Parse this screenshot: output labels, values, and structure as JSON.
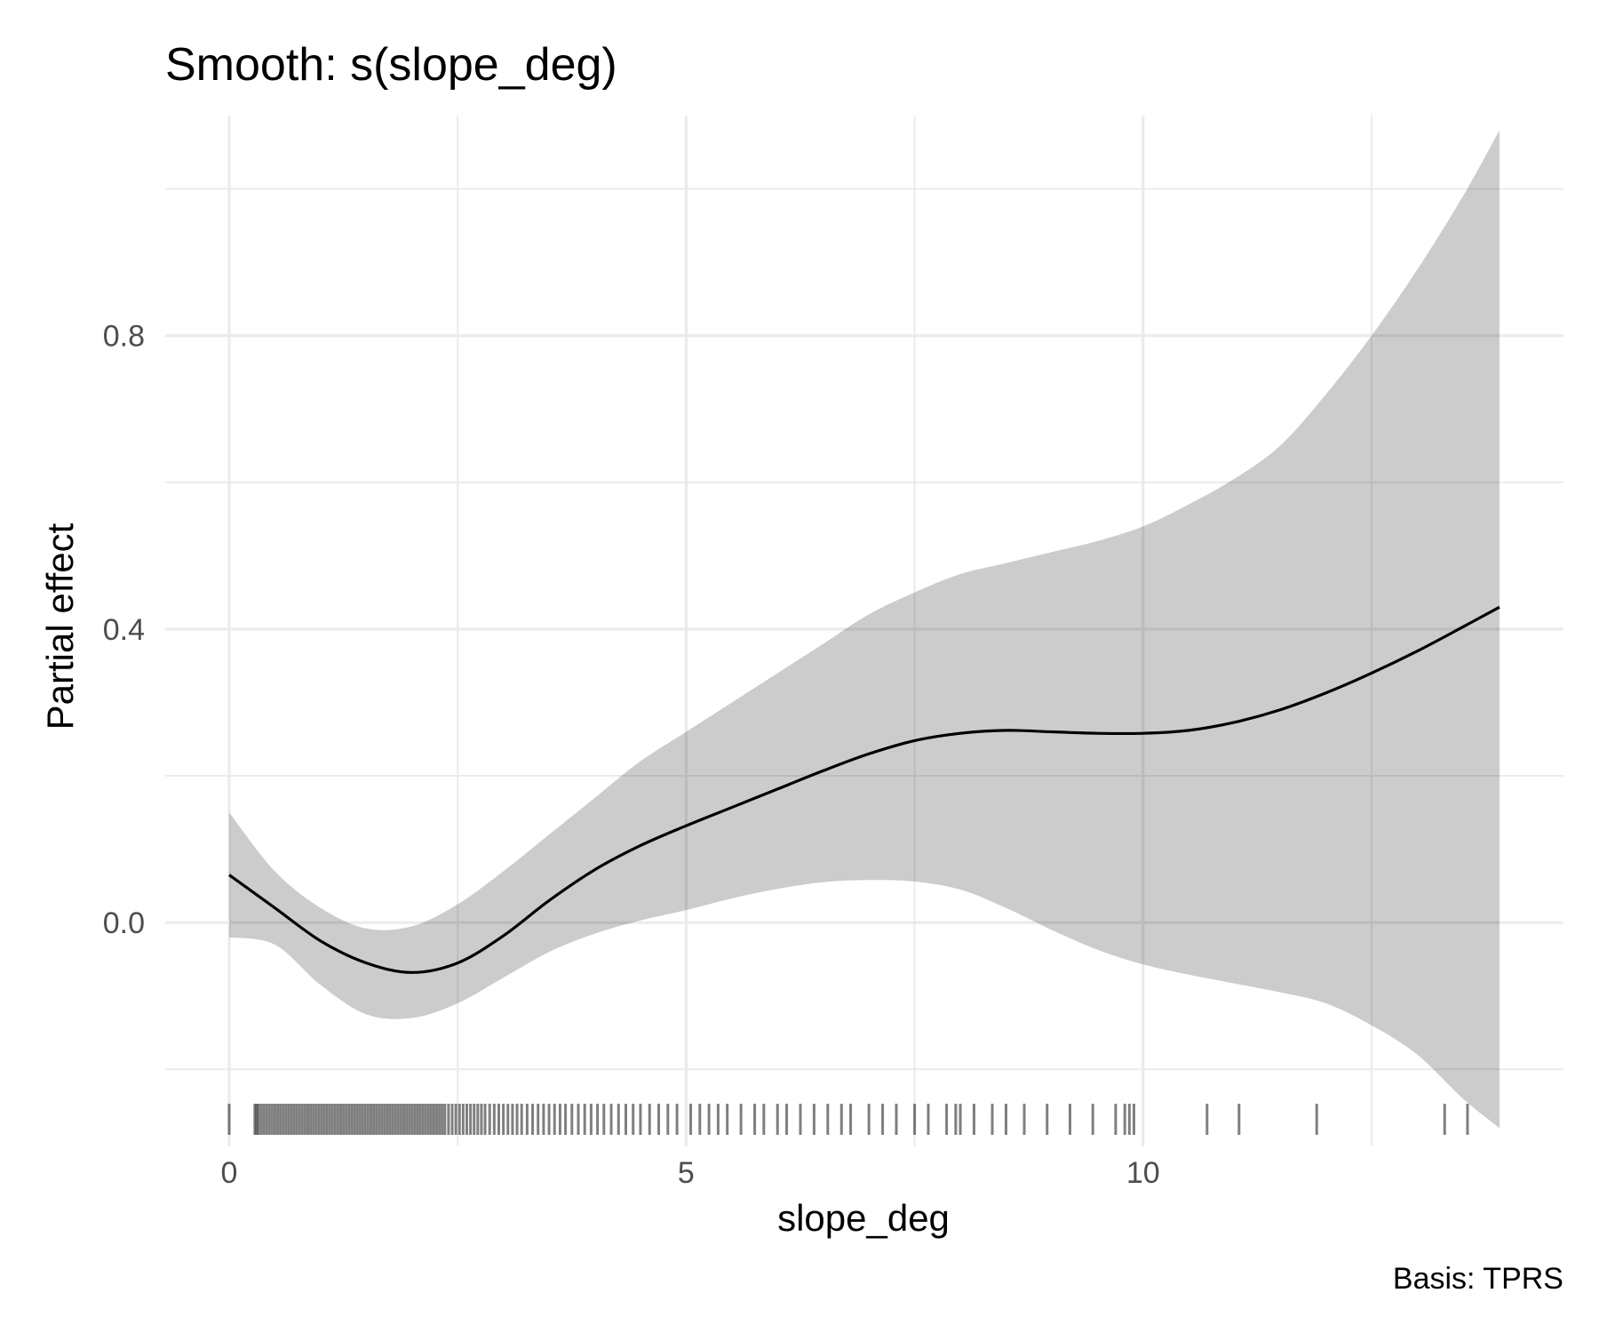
{
  "chart_data": {
    "type": "line",
    "title": "Smooth: s(slope_deg)",
    "xlabel": "slope_deg",
    "ylabel": "Partial effect",
    "caption": "Basis: TPRS",
    "xlim": [
      -0.7,
      14.6
    ],
    "ylim": [
      -0.305,
      1.1
    ],
    "x_ticks": [
      0,
      5,
      10
    ],
    "x_tick_labels": [
      "0",
      "5",
      "10"
    ],
    "y_ticks": [
      0.0,
      0.4,
      0.8
    ],
    "y_tick_labels": [
      "0.0",
      "0.4",
      "0.8"
    ],
    "grid": true,
    "series": [
      {
        "x": [
          0,
          0.5,
          1,
          1.5,
          2,
          2.5,
          3,
          3.5,
          4,
          4.5,
          5,
          5.5,
          6,
          6.5,
          7,
          7.5,
          8,
          8.5,
          9,
          9.5,
          10,
          10.5,
          11,
          11.5,
          12,
          12.5,
          13,
          13.5,
          13.9
        ],
        "y": [
          0.065,
          0.02,
          -0.025,
          -0.055,
          -0.068,
          -0.055,
          -0.018,
          0.03,
          0.072,
          0.105,
          0.132,
          0.157,
          0.182,
          0.207,
          0.23,
          0.248,
          0.258,
          0.262,
          0.26,
          0.258,
          0.258,
          0.262,
          0.273,
          0.29,
          0.313,
          0.34,
          0.37,
          0.403,
          0.43
        ]
      }
    ],
    "ribbon": {
      "x": [
        0,
        0.5,
        1,
        1.5,
        2,
        2.5,
        3,
        3.5,
        4,
        4.5,
        5,
        5.5,
        6,
        6.5,
        7,
        7.5,
        8,
        8.5,
        9,
        9.5,
        10,
        10.5,
        11,
        11.5,
        12,
        12.5,
        13,
        13.5,
        13.9
      ],
      "upper": [
        0.15,
        0.07,
        0.02,
        -0.008,
        -0.005,
        0.025,
        0.07,
        0.12,
        0.17,
        0.22,
        0.26,
        0.3,
        0.34,
        0.38,
        0.42,
        0.45,
        0.475,
        0.49,
        0.505,
        0.52,
        0.54,
        0.57,
        0.605,
        0.65,
        0.72,
        0.8,
        0.89,
        0.99,
        1.08
      ],
      "lower": [
        -0.02,
        -0.03,
        -0.085,
        -0.125,
        -0.13,
        -0.11,
        -0.075,
        -0.04,
        -0.015,
        0.003,
        0.017,
        0.033,
        0.046,
        0.055,
        0.058,
        0.056,
        0.045,
        0.02,
        -0.01,
        -0.037,
        -0.057,
        -0.071,
        -0.083,
        -0.095,
        -0.11,
        -0.14,
        -0.18,
        -0.24,
        -0.28
      ]
    },
    "rug": [
      0,
      0.28,
      0.3,
      0.32,
      0.35,
      0.38,
      0.41,
      0.44,
      0.47,
      0.5,
      0.53,
      0.56,
      0.59,
      0.62,
      0.65,
      0.68,
      0.71,
      0.74,
      0.77,
      0.8,
      0.83,
      0.86,
      0.89,
      0.92,
      0.95,
      0.98,
      1.01,
      1.04,
      1.07,
      1.1,
      1.13,
      1.16,
      1.19,
      1.22,
      1.25,
      1.28,
      1.31,
      1.34,
      1.37,
      1.4,
      1.43,
      1.46,
      1.49,
      1.52,
      1.55,
      1.58,
      1.61,
      1.64,
      1.67,
      1.7,
      1.73,
      1.76,
      1.79,
      1.82,
      1.85,
      1.88,
      1.91,
      1.94,
      1.97,
      2.0,
      2.03,
      2.06,
      2.09,
      2.12,
      2.15,
      2.18,
      2.21,
      2.24,
      2.27,
      2.3,
      2.33,
      2.36,
      2.4,
      2.44,
      2.48,
      2.52,
      2.56,
      2.6,
      2.64,
      2.68,
      2.72,
      2.76,
      2.8,
      2.85,
      2.9,
      2.95,
      3.0,
      3.05,
      3.1,
      3.15,
      3.2,
      3.26,
      3.32,
      3.38,
      3.44,
      3.5,
      3.56,
      3.62,
      3.68,
      3.75,
      3.82,
      3.89,
      3.96,
      4.03,
      4.1,
      4.18,
      4.26,
      4.34,
      4.42,
      4.5,
      4.6,
      4.7,
      4.8,
      4.9,
      5.05,
      5.15,
      5.25,
      5.35,
      5.45,
      5.6,
      5.75,
      5.85,
      6.0,
      6.1,
      6.25,
      6.4,
      6.55,
      6.7,
      6.8,
      7.0,
      7.15,
      7.3,
      7.5,
      7.65,
      7.85,
      7.95,
      8.0,
      8.15,
      8.35,
      8.5,
      8.7,
      8.95,
      9.2,
      9.45,
      9.7,
      9.8,
      9.85,
      9.9,
      10.7,
      11.05,
      11.9,
      13.3,
      13.55
    ]
  }
}
